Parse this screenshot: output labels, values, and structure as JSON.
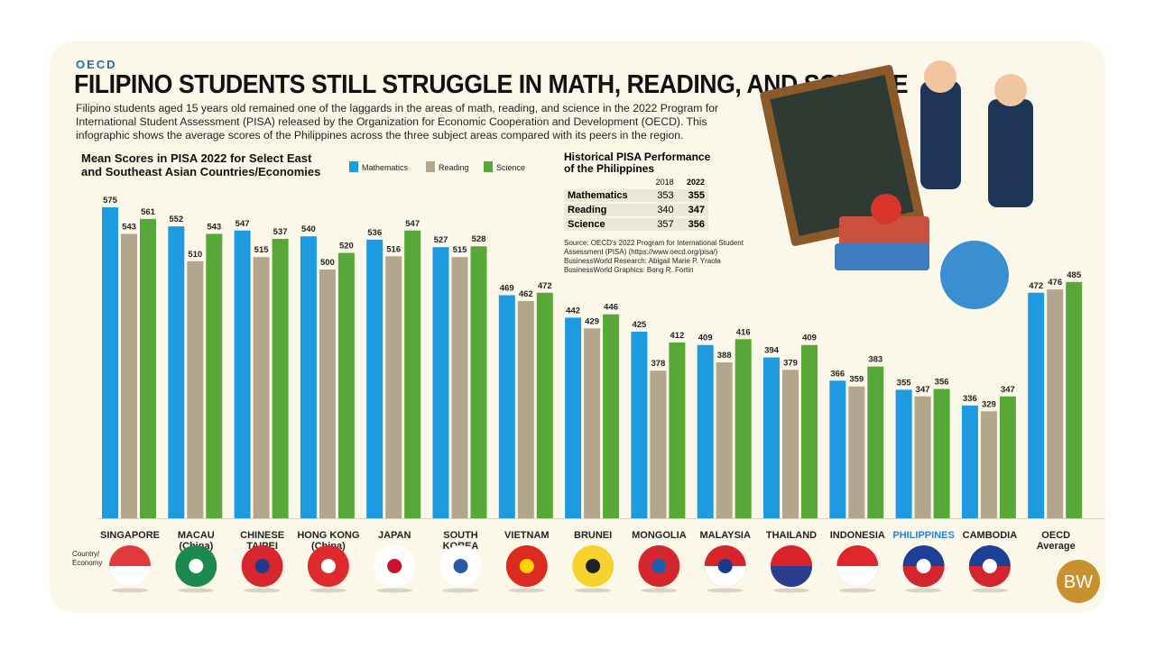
{
  "header": {
    "kicker": "OECD",
    "title": "FILIPINO STUDENTS STILL STRUGGLE IN MATH, READING, AND SCIENCE",
    "description": "Filipino students aged 15 years old remained one of the laggards in the areas of math, reading, and science in the 2022 Program for International Student Assessment (PISA) released by the Organization for Economic Cooperation and Development (OECD). This infographic shows the average scores of the Philippines across the three subject areas compared with its peers in the region."
  },
  "chart_data": {
    "type": "bar",
    "title": "Mean Scores in PISA 2022 for Select East and Southeast Asian Countries/Economies",
    "x_label": "Country/ Economy",
    "categories": [
      "SINGAPORE",
      "MACAU (China)",
      "CHINESE TAIPEI",
      "HONG KONG (China)",
      "JAPAN",
      "SOUTH KOREA",
      "VIETNAM",
      "BRUNEI",
      "MONGOLIA",
      "MALAYSIA",
      "THAILAND",
      "INDONESIA",
      "PHILIPPINES",
      "CAMBODIA",
      "OECD Average"
    ],
    "highlight_index": 12,
    "highlight_color": "#1e88d8",
    "series": [
      {
        "name": "Mathematics",
        "color": "#1e9be0",
        "values": [
          575,
          552,
          547,
          540,
          536,
          527,
          469,
          442,
          425,
          409,
          394,
          366,
          355,
          336,
          472
        ]
      },
      {
        "name": "Reading",
        "color": "#b3a68c",
        "values": [
          543,
          510,
          515,
          500,
          516,
          515,
          462,
          429,
          378,
          388,
          379,
          359,
          347,
          329,
          476
        ]
      },
      {
        "name": "Science",
        "color": "#58a839",
        "values": [
          561,
          543,
          537,
          520,
          547,
          528,
          472,
          446,
          412,
          416,
          409,
          383,
          356,
          347,
          485
        ]
      }
    ],
    "ylim": [
      200,
      600
    ]
  },
  "table": {
    "title": "Historical PISA Performance of the Philippines",
    "columns": [
      "2018",
      "2022"
    ],
    "rows": [
      [
        "Mathematics",
        353,
        355
      ],
      [
        "Reading",
        340,
        347
      ],
      [
        "Science",
        357,
        356
      ]
    ]
  },
  "credits": [
    "Source: OECD's 2022 Program for International Student Assessment (PISA) (https://www.oecd.org/pisa/)",
    "BusinessWorld Research: Abigail Marie P. Yraola",
    "BusinessWorld Graphics: Bong R. Fortin"
  ],
  "logo": "BW"
}
